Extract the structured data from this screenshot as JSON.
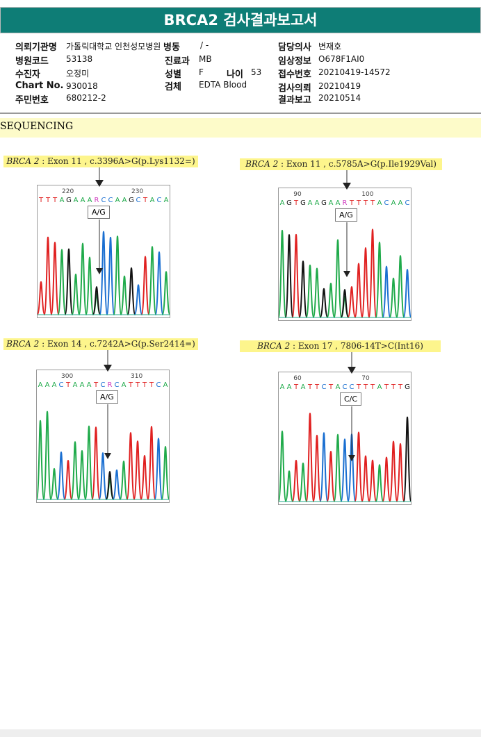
{
  "title": "BRCA2 검사결과보고서",
  "info": {
    "institution_label": "의뢰기관명",
    "institution": "가톨릭대학교 인천성모병원",
    "ward_label": "병동",
    "ward": "/ -",
    "doctor_label": "담당의사",
    "doctor": "변재호",
    "hospital_code_label": "병원코드",
    "hospital_code": "53138",
    "dept_label": "진료과",
    "dept": "MB",
    "clinical_label": "임상정보",
    "clinical": "O678F1AI0",
    "patient_label": "수진자",
    "patient": "오정미",
    "sex_label": "성별",
    "sex": "F",
    "age_label": "나이",
    "age": "53",
    "receipt_label": "접수번호",
    "receipt": "20210419-14572",
    "chart_label": "Chart No.",
    "chart": "930018",
    "specimen_label": "검체",
    "specimen": "EDTA Blood",
    "request_label": "검사의뢰",
    "request": "20210419",
    "id_label": "주민번호",
    "id": "680212-2",
    "report_label": "결과보고",
    "report": "20210514"
  },
  "section": "SEQUENCING",
  "panels": [
    {
      "gene": "BRCA 2",
      "desc": " : Exon 11 , c.3396A>G(p.Lys1132=)",
      "seq": "TTTAGAAARCCAAGCTACA",
      "ticks": [
        "220",
        "230"
      ],
      "call": "A/G"
    },
    {
      "gene": "BRCA 2",
      "desc": " : Exon 11 , c.5785A>G(p.Ile1929Val)",
      "seq": "AGTGAAGAARTTTTACAAC",
      "ticks": [
        "90",
        "100"
      ],
      "call": "A/G"
    },
    {
      "gene": "BRCA 2",
      "desc": " : Exon 14 , c.7242A>G(p.Ser2414=)",
      "seq": "AAACTAAATCRCATTTTCA",
      "ticks": [
        "300",
        "310"
      ],
      "call": "A/G"
    },
    {
      "gene": "BRCA 2",
      "desc": " : Exon 17 , 7806-14T>C(Int16)",
      "seq": "AATATTCTACCTTTATTTG",
      "ticks": [
        "60",
        "70"
      ],
      "call": "C/C"
    }
  ],
  "colors": {
    "A": "#1faa4a",
    "C": "#1a6fd1",
    "G": "#111111",
    "T": "#e02020",
    "R": "#d040c0"
  }
}
